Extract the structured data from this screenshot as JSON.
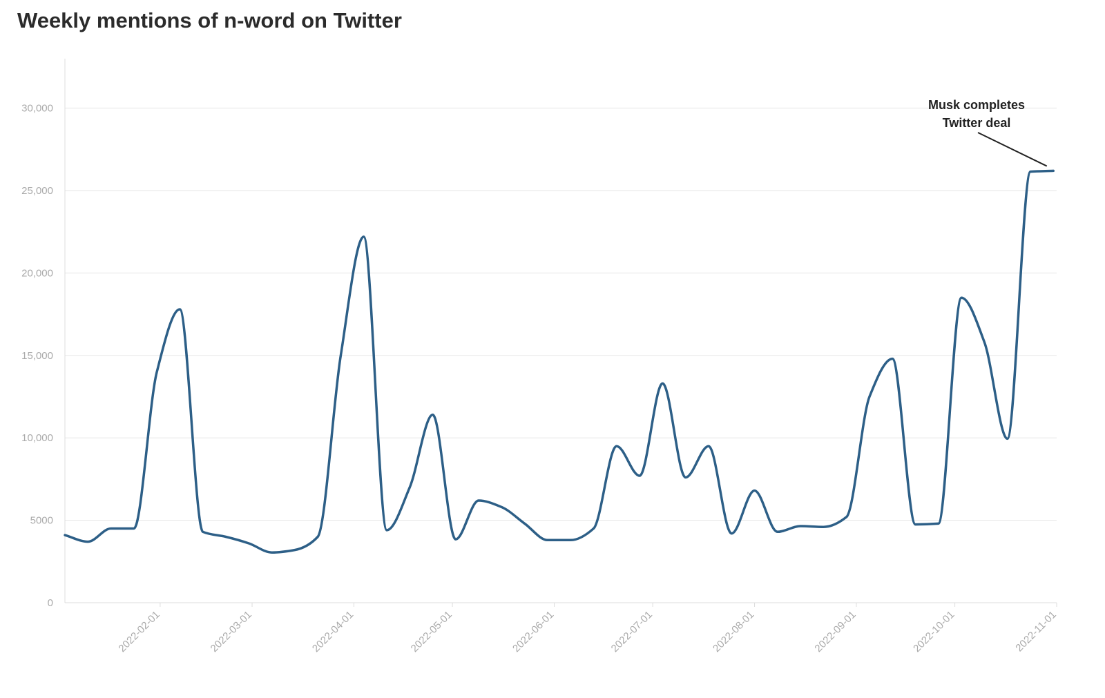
{
  "title": "Weekly mentions of n-word on Twitter",
  "colors": {
    "line": "#2d5f87",
    "grid": "#e6e6e6",
    "axis": "#dddddd",
    "tick_text": "#aaaaaa"
  },
  "chart_data": {
    "type": "line",
    "title": "Weekly mentions of n-word on Twitter",
    "xlabel": "",
    "ylabel": "",
    "x_type": "date",
    "xlim": [
      "2022-01-03",
      "2022-11-01"
    ],
    "ylim": [
      0,
      33000
    ],
    "grid": true,
    "legend": "none",
    "y_ticks": [
      0,
      5000,
      10000,
      15000,
      20000,
      25000,
      30000
    ],
    "y_tick_labels": [
      "0",
      "5000",
      "10,000",
      "15,000",
      "20,000",
      "25,000",
      "30,000"
    ],
    "x_ticks": [
      "2022-02-01",
      "2022-03-01",
      "2022-04-01",
      "2022-05-01",
      "2022-06-01",
      "2022-07-01",
      "2022-08-01",
      "2022-09-01",
      "2022-10-01",
      "2022-11-01"
    ],
    "series": [
      {
        "x": [
          "2022-01-03",
          "2022-01-10",
          "2022-01-17",
          "2022-01-24",
          "2022-01-31",
          "2022-02-07",
          "2022-02-14",
          "2022-02-21",
          "2022-02-28",
          "2022-03-07",
          "2022-03-14",
          "2022-03-21",
          "2022-03-28",
          "2022-04-04",
          "2022-04-11",
          "2022-04-18",
          "2022-04-25",
          "2022-05-02",
          "2022-05-09",
          "2022-05-16",
          "2022-05-23",
          "2022-05-30",
          "2022-06-06",
          "2022-06-13",
          "2022-06-20",
          "2022-06-27",
          "2022-07-04",
          "2022-07-11",
          "2022-07-18",
          "2022-07-25",
          "2022-08-01",
          "2022-08-08",
          "2022-08-15",
          "2022-08-22",
          "2022-08-29",
          "2022-09-05",
          "2022-09-12",
          "2022-09-19",
          "2022-09-26",
          "2022-10-03",
          "2022-10-10",
          "2022-10-17",
          "2022-10-24",
          "2022-10-31"
        ],
        "y": [
          4100,
          3700,
          4500,
          4500,
          14000,
          17800,
          4300,
          4000,
          3600,
          3050,
          3200,
          4000,
          15000,
          22200,
          4400,
          7000,
          11400,
          3850,
          6200,
          5800,
          4800,
          3800,
          3800,
          4500,
          9500,
          7700,
          13300,
          7600,
          9500,
          4200,
          6800,
          4300,
          4650,
          4600,
          5200,
          12500,
          14800,
          4750,
          4800,
          18500,
          15800,
          9950,
          26150,
          26200
        ]
      }
    ],
    "annotations": [
      {
        "text_lines": [
          "Musk completes",
          "Twitter deal"
        ],
        "x": "2022-10-29",
        "y": 26150
      }
    ]
  }
}
